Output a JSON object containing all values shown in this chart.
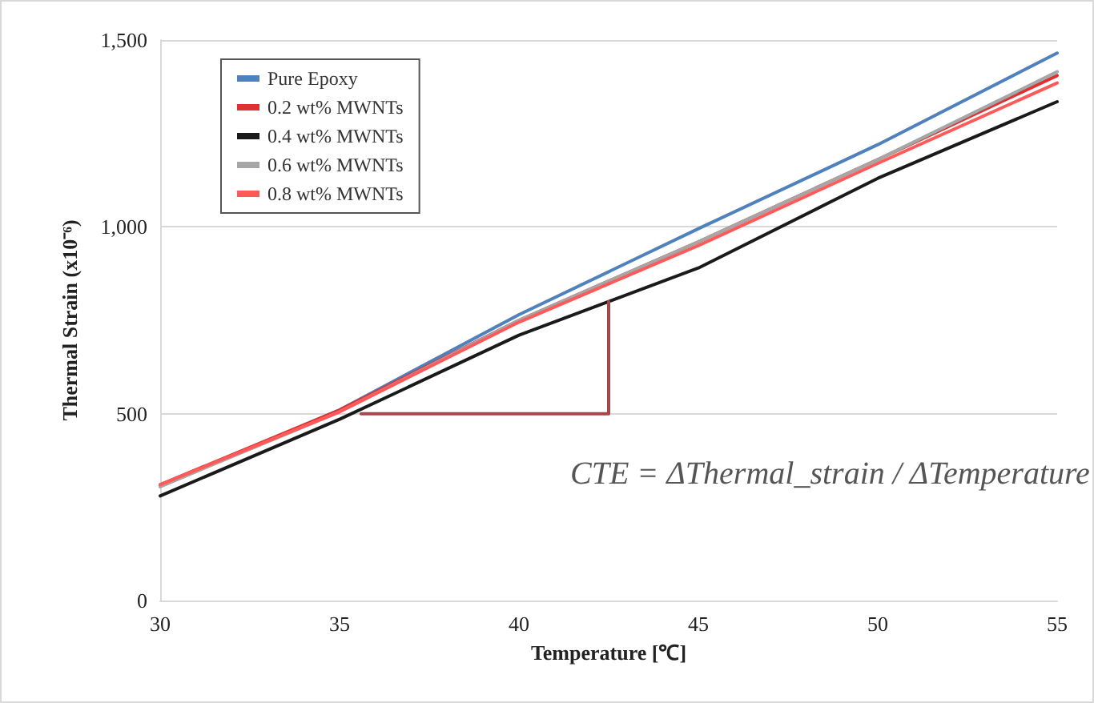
{
  "chart_data": {
    "type": "line",
    "xlabel": "Temperature [℃]",
    "ylabel": "Thermal Strain (x10⁻⁶)",
    "xlim": [
      30,
      55
    ],
    "xticks": [
      30,
      35,
      40,
      45,
      50,
      55
    ],
    "ylim": [
      0,
      1500
    ],
    "yticks": [
      0,
      500,
      {
        "value": 1000,
        "label": "1,000"
      },
      {
        "value": 1500,
        "label": "1,500"
      }
    ],
    "grid": "y",
    "legend": "top left",
    "marker": "none",
    "line_style": "solid",
    "annotations": [
      "CTE = ΔThermal_strain / ΔTemperature"
    ],
    "series": [
      {
        "name": "Pure Epoxy",
        "color": "#4f81bd",
        "x": [
          30,
          35,
          40,
          45,
          50,
          55
        ],
        "values": [
          305,
          510,
          765,
          995,
          1220,
          1465
        ]
      },
      {
        "name": "0.2 wt% MWNTs",
        "color": "#e0302f",
        "x": [
          30,
          35,
          40,
          45,
          50,
          55
        ],
        "values": [
          310,
          510,
          750,
          960,
          1180,
          1405
        ]
      },
      {
        "name": "0.4 wt% MWNTs",
        "color": "#1a1a1a",
        "x": [
          30,
          35,
          40,
          45,
          50,
          55
        ],
        "values": [
          280,
          485,
          710,
          890,
          1130,
          1335
        ]
      },
      {
        "name": "0.6 wt% MWNTs",
        "color": "#a6a6a6",
        "x": [
          30,
          35,
          40,
          45,
          50,
          55
        ],
        "values": [
          305,
          505,
          750,
          960,
          1180,
          1415
        ]
      },
      {
        "name": "0.8 wt% MWNTs",
        "color": "#ff5a5a",
        "x": [
          30,
          35,
          40,
          45,
          50,
          55
        ],
        "values": [
          310,
          505,
          745,
          950,
          1170,
          1385
        ]
      },
      {
        "color": "#a5474a",
        "x": [
          35.6,
          42.5,
          42.5
        ],
        "values": [
          500,
          500,
          800
        ]
      }
    ]
  }
}
